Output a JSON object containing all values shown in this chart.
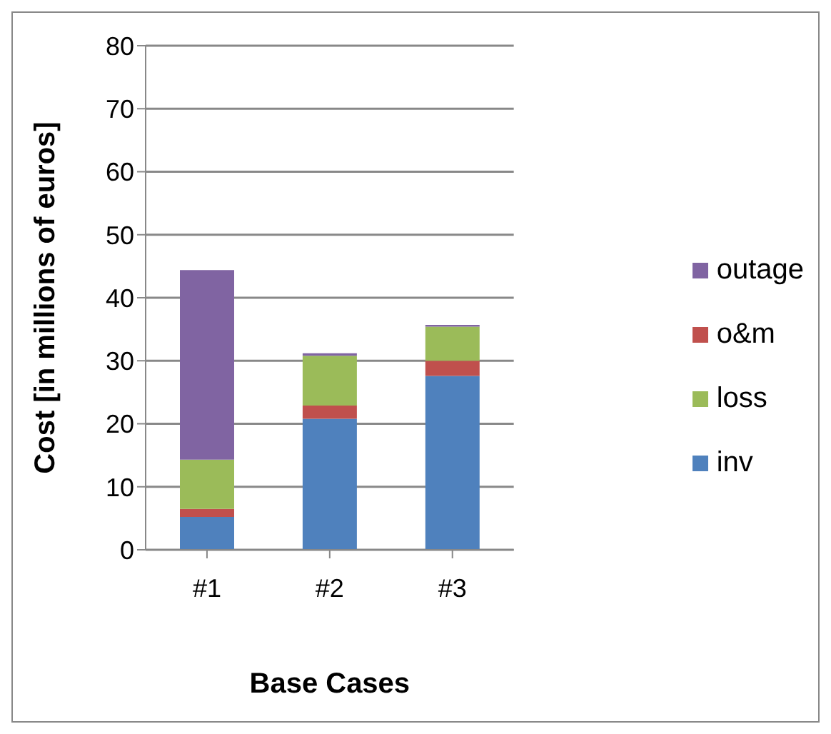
{
  "chart_data": {
    "type": "bar",
    "stacked": true,
    "xlabel": "Base Cases",
    "ylabel": "Cost [in millions of euros]",
    "categories": [
      "#1",
      "#2",
      "#3"
    ],
    "series": [
      {
        "name": "inv",
        "color": "#4f81bd",
        "values": [
          5.2,
          20.8,
          27.6
        ]
      },
      {
        "name": "o&m",
        "color": "#c0504d",
        "values": [
          1.3,
          2.1,
          2.4
        ]
      },
      {
        "name": "loss",
        "color": "#9bbb59",
        "values": [
          7.8,
          7.9,
          5.4
        ]
      },
      {
        "name": "outage",
        "color": "#8064a2",
        "values": [
          30.1,
          0.4,
          0.3
        ]
      }
    ],
    "ylim": [
      0,
      80
    ],
    "yticks": [
      0,
      10,
      20,
      30,
      40,
      50,
      60,
      70,
      80
    ],
    "grid": "y",
    "legend": "right"
  }
}
